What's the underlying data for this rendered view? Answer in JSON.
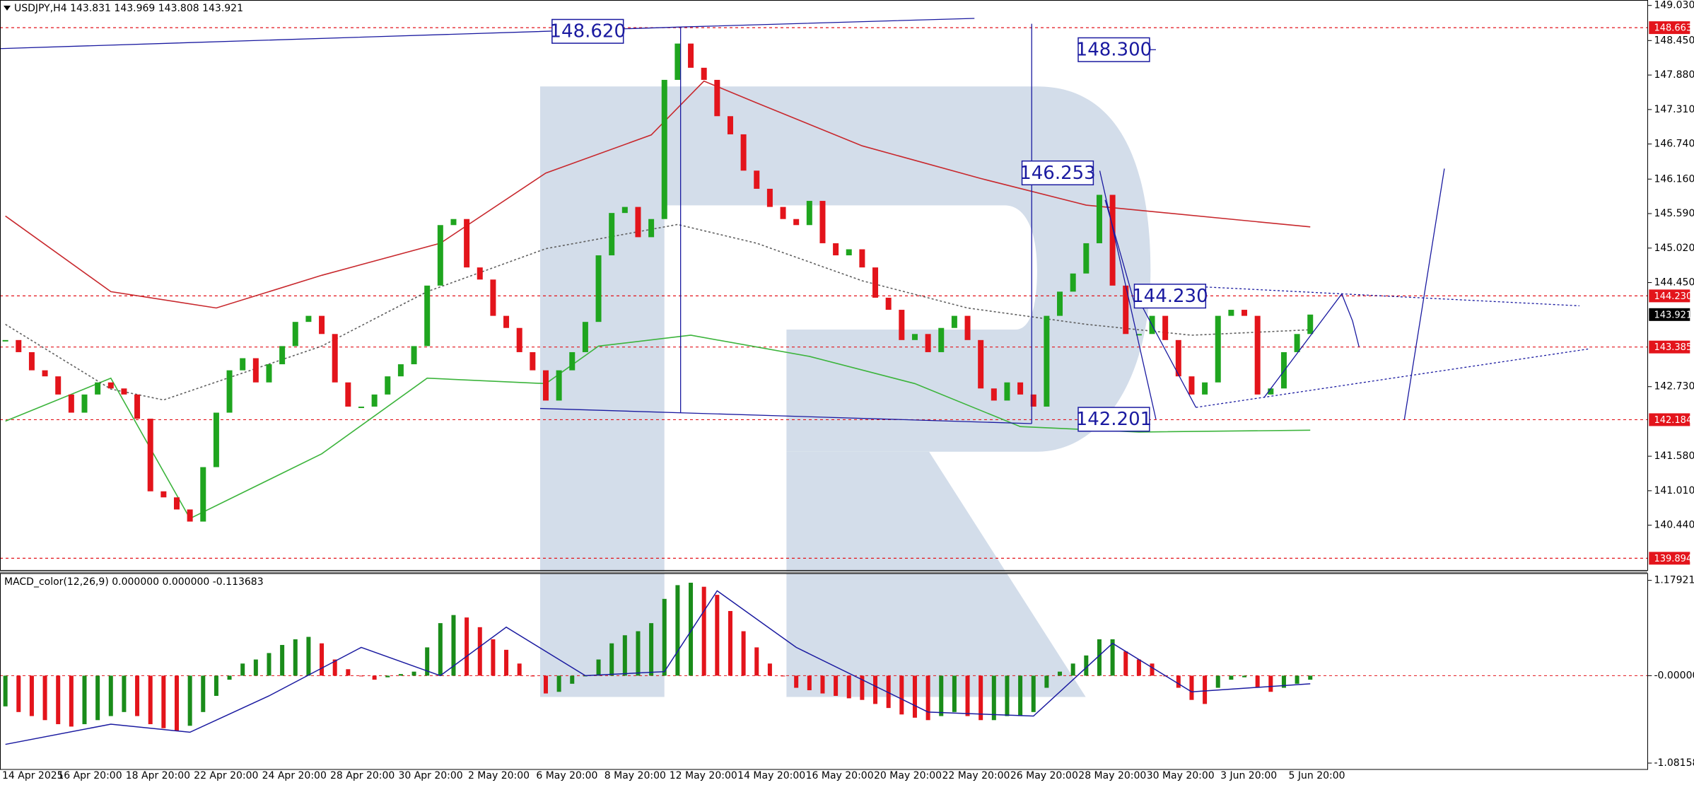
{
  "chart_data": [
    {
      "type": "candlestick",
      "title": "USDJPY,H4  143.831 143.969 143.808 143.921",
      "close": [
        143.5,
        143.3,
        143.0,
        142.9,
        142.6,
        142.3,
        142.6,
        142.8,
        142.7,
        142.6,
        142.2,
        141.0,
        140.9,
        140.7,
        140.5,
        141.4,
        142.3,
        143.0,
        143.2,
        142.8,
        143.1,
        143.4,
        143.8,
        143.9,
        143.6,
        142.8,
        142.4,
        142.4,
        142.6,
        142.9,
        143.1,
        143.4,
        144.4,
        145.4,
        145.5,
        144.7,
        144.5,
        143.9,
        143.7,
        143.3,
        143.0,
        142.5,
        143.0,
        143.3,
        143.8,
        144.9,
        145.6,
        145.7,
        145.2,
        145.5,
        147.8,
        148.4,
        148.0,
        147.8,
        147.2,
        146.9,
        146.3,
        146.0,
        145.7,
        145.5,
        145.4,
        145.8,
        145.1,
        144.9,
        145.0,
        144.7,
        144.2,
        144.0,
        143.5,
        143.6,
        143.3,
        143.7,
        143.9,
        143.5,
        142.7,
        142.5,
        142.8,
        142.6,
        142.4,
        143.9,
        144.3,
        144.6,
        145.1,
        145.9,
        144.4,
        143.6,
        143.6,
        143.9,
        143.5,
        142.9,
        142.6,
        142.8,
        143.9,
        144.0,
        143.9,
        142.6,
        142.7,
        143.3,
        143.6,
        143.921
      ],
      "up_color": "#1fa51f",
      "down_color": "#e3141b",
      "ylim": [
        139.69,
        149.12
      ],
      "yticks": [
        {
          "value": 149.03,
          "label": "149.030"
        },
        {
          "value": 148.45,
          "label": "148.450"
        },
        {
          "value": 147.88,
          "label": "147.880"
        },
        {
          "value": 147.31,
          "label": "147.310"
        },
        {
          "value": 146.74,
          "label": "146.740"
        },
        {
          "value": 146.16,
          "label": "146.160"
        },
        {
          "value": 145.59,
          "label": "145.590"
        },
        {
          "value": 145.02,
          "label": "145.020"
        },
        {
          "value": 144.45,
          "label": "144.450"
        },
        {
          "value": 142.73,
          "label": "142.730"
        },
        {
          "value": 141.58,
          "label": "141.580"
        },
        {
          "value": 141.01,
          "label": "141.010"
        },
        {
          "value": 140.44,
          "label": "140.440"
        }
      ],
      "levels": [
        148.663,
        {
          "value": 144.23,
          "label": "144.230"
        },
        143.385,
        142.184,
        139.894
      ],
      "level_color": "#e3141b",
      "last_price": 143.921,
      "lines": [
        {
          "color": "#c8282d",
          "dashed": false,
          "x": [
            0,
            8,
            16,
            24,
            33,
            41,
            49,
            53,
            57,
            65,
            74,
            82,
            99
          ],
          "values": [
            145.55,
            144.3,
            144.03,
            144.57,
            145.1,
            146.26,
            146.89,
            147.78,
            147.42,
            146.71,
            146.17,
            145.73,
            145.37
          ]
        },
        {
          "color": "#3cb43c",
          "dashed": false,
          "x": [
            0,
            8,
            14,
            24,
            32,
            41,
            45,
            52,
            61,
            69,
            77,
            86,
            99
          ],
          "values": [
            142.16,
            142.87,
            140.55,
            141.62,
            142.87,
            142.78,
            143.4,
            143.58,
            143.23,
            142.78,
            142.07,
            141.98,
            142.01
          ]
        },
        {
          "color": "#606060",
          "dashed": true,
          "x": [
            0,
            8,
            12,
            24,
            32,
            41,
            51,
            57,
            65,
            73,
            82,
            90,
            99
          ],
          "values": [
            143.76,
            142.69,
            142.51,
            143.4,
            144.3,
            145.01,
            145.41,
            145.1,
            144.48,
            144.03,
            143.76,
            143.58,
            143.67
          ]
        }
      ],
      "annotations": [
        "148.620",
        "148.300",
        "146.253",
        "144.230",
        "142.201"
      ],
      "x_labels": [
        "14 Apr 2025",
        "16 Apr 20:00",
        "18 Apr 20:00",
        "22 Apr 20:00",
        "24 Apr 20:00",
        "28 Apr 20:00",
        "30 Apr 20:00",
        "2 May 20:00",
        "6 May 20:00",
        "8 May 20:00",
        "12 May 20:00",
        "14 May 20:00",
        "16 May 20:00",
        "20 May 20:00",
        "22 May 20:00",
        "26 May 20:00",
        "28 May 20:00",
        "30 May 20:00",
        "3 Jun 20:00",
        "5 Jun 20:00"
      ]
    },
    {
      "type": "bar",
      "title": "MACD_color(12,26,9) 0.000000 0.000000 -0.113683",
      "values": [
        -0.38,
        -0.45,
        -0.5,
        -0.55,
        -0.6,
        -0.63,
        -0.6,
        -0.55,
        -0.5,
        -0.45,
        -0.5,
        -0.6,
        -0.65,
        -0.68,
        -0.62,
        -0.45,
        -0.25,
        -0.05,
        0.15,
        0.2,
        0.28,
        0.38,
        0.45,
        0.48,
        0.4,
        0.2,
        0.08,
        0.0,
        -0.05,
        -0.02,
        0.02,
        0.05,
        0.35,
        0.65,
        0.75,
        0.72,
        0.6,
        0.45,
        0.32,
        0.15,
        0.0,
        -0.22,
        -0.2,
        -0.1,
        0.0,
        0.2,
        0.4,
        0.5,
        0.55,
        0.65,
        0.95,
        1.12,
        1.15,
        1.1,
        1.0,
        0.8,
        0.55,
        0.35,
        0.15,
        0.0,
        -0.15,
        -0.18,
        -0.22,
        -0.25,
        -0.28,
        -0.3,
        -0.35,
        -0.4,
        -0.48,
        -0.52,
        -0.55,
        -0.5,
        -0.45,
        -0.5,
        -0.55,
        -0.55,
        -0.5,
        -0.5,
        -0.45,
        -0.15,
        0.05,
        0.15,
        0.25,
        0.45,
        0.45,
        0.3,
        0.2,
        0.15,
        0.0,
        -0.15,
        -0.3,
        -0.35,
        -0.15,
        -0.05,
        -0.02,
        -0.15,
        -0.2,
        -0.15,
        -0.1,
        -0.05
      ],
      "up_color": "#1a8c1a",
      "down_color": "#e3141b",
      "ylim": [
        -1.16,
        1.26
      ],
      "yticks": [
        1.179213,
        {
          "value": 0,
          "label": "-0.000000"
        },
        -1.081588
      ],
      "zero_color": "#e3141b",
      "line": {
        "color": "#1a1aa0",
        "x": [
          0,
          8,
          14,
          20,
          27,
          33,
          38,
          44,
          50,
          54,
          60,
          70,
          78,
          84,
          90,
          99
        ],
        "values": [
          -0.85,
          -0.6,
          -0.7,
          -0.25,
          0.35,
          0.0,
          0.6,
          0.0,
          0.05,
          1.05,
          0.35,
          -0.45,
          -0.5,
          0.4,
          -0.2,
          -0.1
        ]
      }
    }
  ]
}
